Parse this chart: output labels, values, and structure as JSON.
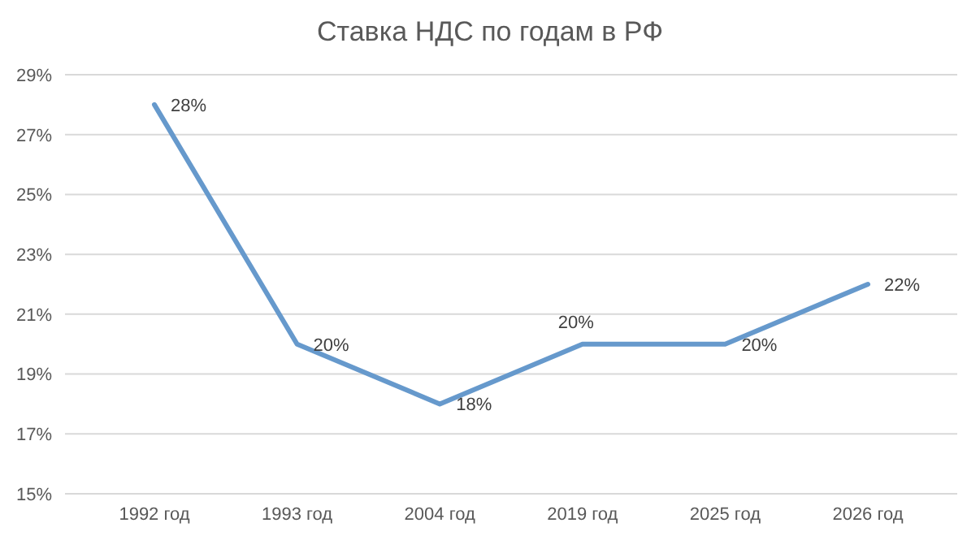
{
  "chart_data": {
    "type": "line",
    "title": "Ставка НДС по годам в РФ",
    "categories": [
      "1992 год",
      "1993 год",
      "2004 год",
      "2019 год",
      "2025 год",
      "2026 год"
    ],
    "series": [
      {
        "color": "#6699cc",
        "values": [
          28,
          20,
          18,
          20,
          20,
          22
        ],
        "value_labels": [
          "28%",
          "20%",
          "18%",
          "20%",
          "20%",
          "22%"
        ]
      }
    ],
    "ylim": [
      15,
      29
    ],
    "yticks": [
      {
        "value": 15,
        "label": "15%"
      },
      {
        "value": 17,
        "label": "17%"
      },
      {
        "value": 19,
        "label": "19%"
      },
      {
        "value": 21,
        "label": "21%"
      },
      {
        "value": 23,
        "label": "23%"
      },
      {
        "value": 25,
        "label": "25%"
      },
      {
        "value": 27,
        "label": "27%"
      },
      {
        "value": 29,
        "label": "29%"
      }
    ],
    "grid": "y",
    "marker": "none",
    "line_style": "solid",
    "legend": false
  }
}
